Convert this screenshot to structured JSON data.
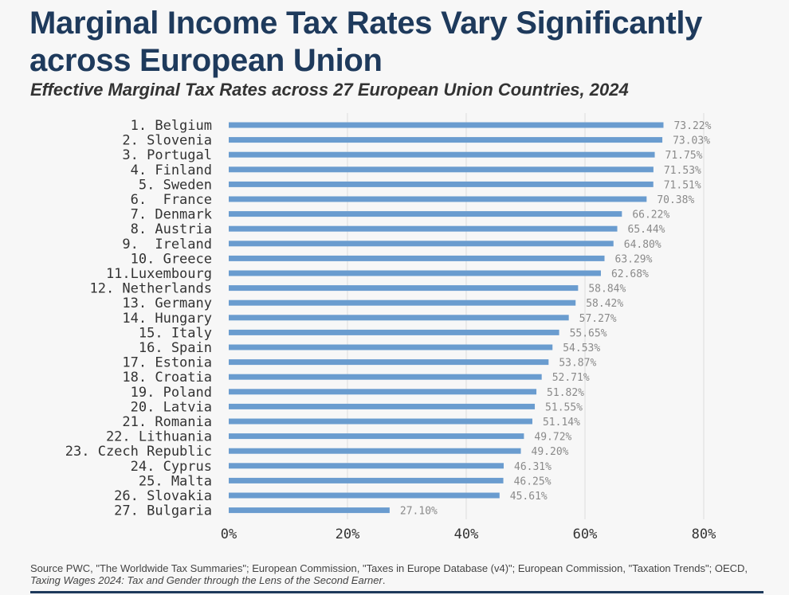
{
  "title": "Marginal Income Tax Rates Vary Significantly across European Union",
  "subtitle": "Effective Marginal Tax Rates across 27 European Union Countries, 2024",
  "source": {
    "text": "Source PWC, \"The Worldwide Tax Summaries\"; European Commission, \"Taxes in Europe Database (v4)\"; European Commission, \"Taxation Trends\"; OECD, ",
    "italic": "Taxing Wages 2024: Tax and Gender through the Lens of the Second Earner",
    "end": "."
  },
  "colors": {
    "bar": "#6a9ccf",
    "title": "#1e3a5c",
    "label": "#333333",
    "value_label": "#8a8a8a",
    "grid": "#dcdcdc"
  },
  "chart_data": {
    "type": "bar",
    "orientation": "horizontal",
    "categories": [
      "1. Belgium",
      "2. Slovenia",
      "3. Portugal",
      "4. Finland",
      "5. Sweden",
      "6.  France",
      "7. Denmark",
      "8. Austria",
      "9.  Ireland",
      "10. Greece",
      "11.Luxembourg",
      "12. Netherlands",
      "13. Germany",
      "14. Hungary",
      "15. Italy",
      "16. Spain",
      "17. Estonia",
      "18. Croatia",
      "19. Poland",
      "20. Latvia",
      "21. Romania",
      "22. Lithuania",
      "23. Czech Republic",
      "24. Cyprus",
      "25. Malta",
      "26. Slovakia",
      "27. Bulgaria"
    ],
    "values": [
      73.22,
      73.03,
      71.75,
      71.53,
      71.51,
      70.38,
      66.22,
      65.44,
      64.8,
      63.29,
      62.68,
      58.84,
      58.42,
      57.27,
      55.65,
      54.53,
      53.87,
      52.71,
      51.82,
      51.55,
      51.14,
      49.72,
      49.2,
      46.31,
      46.25,
      45.61,
      27.1
    ],
    "value_labels": [
      "73.22%",
      "73.03%",
      "71.75%",
      "71.53%",
      "71.51%",
      "70.38%",
      "66.22%",
      "65.44%",
      "64.80%",
      "63.29%",
      "62.68%",
      "58.84%",
      "58.42%",
      "57.27%",
      "55.65%",
      "54.53%",
      "53.87%",
      "52.71%",
      "51.82%",
      "51.55%",
      "51.14%",
      "49.72%",
      "49.20%",
      "46.31%",
      "46.25%",
      "45.61%",
      "27.10%"
    ],
    "xlim": [
      0,
      80
    ],
    "xticks": [
      0,
      20,
      40,
      60,
      80
    ],
    "xtick_labels": [
      "0%",
      "20%",
      "40%",
      "60%",
      "80%"
    ],
    "grid": "vertical",
    "legend": "none"
  }
}
